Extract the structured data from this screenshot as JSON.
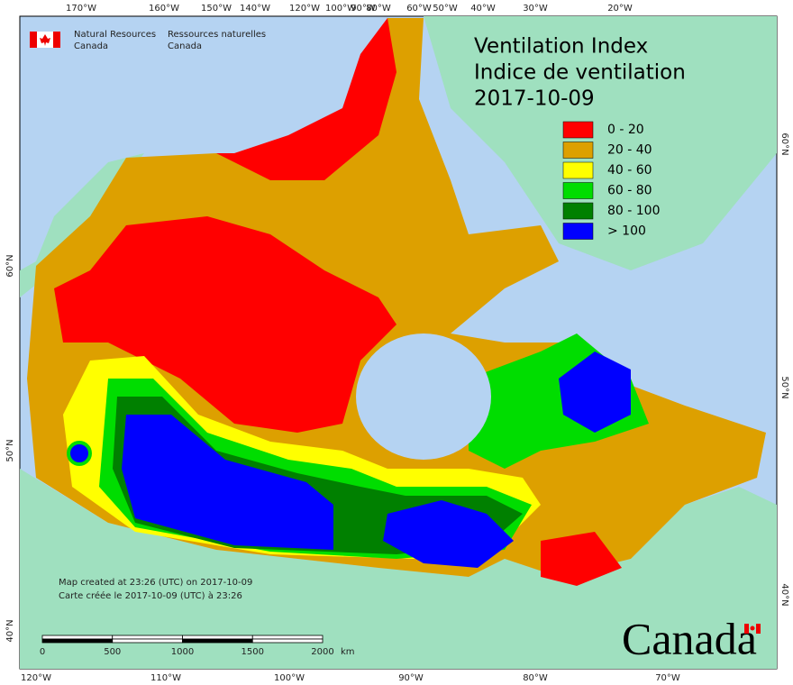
{
  "header": {
    "agency_en": "Natural Resources",
    "agency_en_2": "Canada",
    "agency_fr": "Ressources naturelles",
    "agency_fr_2": "Canada"
  },
  "title": {
    "en": "Ventilation Index",
    "fr": "Indice de ventilation",
    "date": "2017-10-09"
  },
  "legend": [
    {
      "label": "0 - 20",
      "color": "#ff0000"
    },
    {
      "label": "20 - 40",
      "color": "#dda000"
    },
    {
      "label": "40 - 60",
      "color": "#ffff00"
    },
    {
      "label": "60 - 80",
      "color": "#00dd00"
    },
    {
      "label": "80 - 100",
      "color": "#008000"
    },
    {
      "label": "> 100",
      "color": "#0000ff"
    }
  ],
  "top_labels": [
    "170°W",
    "160°W",
    "150°W",
    "140°W",
    "120°W",
    "100°W",
    "90°W",
    "80°W",
    "60°W",
    "50°W",
    "40°W",
    "30°W",
    "20°W"
  ],
  "bottom_labels": [
    "120°W",
    "110°W",
    "100°W",
    "90°W",
    "80°W",
    "70°W"
  ],
  "left_labels": [
    "60°N",
    "50°N",
    "40°N"
  ],
  "right_labels": [
    "60°N",
    "50°N",
    "40°N"
  ],
  "scale": {
    "ticks": [
      0,
      500,
      1000,
      1500,
      2000
    ],
    "unit": "km"
  },
  "notes": [
    "Map created at 23:26 (UTC) on 2017-10-09",
    "Carte créée le 2017-10-09 (UTC) à 23:26"
  ],
  "wordmark": "Canada"
}
